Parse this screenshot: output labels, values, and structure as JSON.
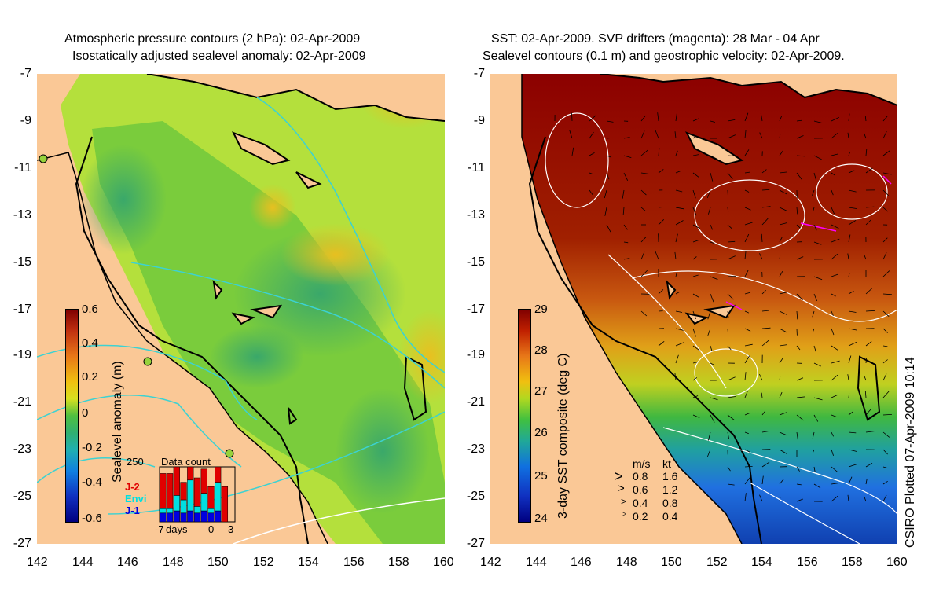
{
  "left_panel": {
    "title_line1": "Atmospheric pressure contours (2 hPa): 02-Apr-2009",
    "title_line2": "Isostatically adjusted sealevel anomaly: 02-Apr-2009",
    "colorbar_label": "Sealevel anomaly (m)",
    "colorbar_ticks": [
      "0.6",
      "0.4",
      "0.2",
      "0",
      "-0.2",
      "-0.4",
      "-0.6"
    ],
    "inset": {
      "title": "Data count",
      "ymax_label": "250",
      "legend": [
        {
          "name": "J-2",
          "color": "#e00000"
        },
        {
          "name": "Envi",
          "color": "#00e0e0"
        },
        {
          "name": "J-1",
          "color": "#0000e0"
        }
      ],
      "xlabel": "days",
      "x_ticks": [
        "-7",
        "0",
        "3"
      ]
    }
  },
  "right_panel": {
    "title_line1": "SST: 02-Apr-2009. SVP drifters (magenta): 28 Mar - 04 Apr",
    "title_line2": "Sealevel contours (0.1 m) and geostrophic velocity: 02-Apr-2009.",
    "colorbar_label": "3-day SST composite (deg C)",
    "colorbar_ticks": [
      "29",
      "28",
      "27",
      "26",
      "25",
      "24"
    ],
    "velocity_legend": {
      "header_ms": "m/s",
      "header_kt": "kt",
      "rows": [
        {
          "ms": "0.8",
          "kt": "1.6"
        },
        {
          "ms": "0.6",
          "kt": "1.2"
        },
        {
          "ms": "0.4",
          "kt": "0.8"
        },
        {
          "ms": "0.2",
          "kt": "0.4"
        }
      ]
    }
  },
  "y_ticks": [
    "-7",
    "-9",
    "-11",
    "-13",
    "-15",
    "-17",
    "-19",
    "-21",
    "-23",
    "-25",
    "-27"
  ],
  "x_ticks": [
    "142",
    "144",
    "146",
    "148",
    "150",
    "152",
    "154",
    "156",
    "158",
    "160"
  ],
  "credit": "CSIRO Plotted 07-Apr-2009 10:14",
  "chart_data": [
    {
      "type": "heatmap",
      "title": "Atmospheric pressure contours (2 hPa): 02-Apr-2009 / Isostatically adjusted sealevel anomaly: 02-Apr-2009",
      "x_range": [
        142,
        160
      ],
      "y_range": [
        -27,
        -7
      ],
      "colorbar_range": [
        -0.6,
        0.6
      ],
      "colorbar_label": "Sealevel anomaly (m)",
      "inset_bar": {
        "categories": [
          "-7",
          "-6",
          "-5",
          "-4",
          "-3",
          "-2",
          "-1",
          "0",
          "1",
          "2",
          "3"
        ],
        "series": [
          {
            "name": "J-1",
            "values": [
              40,
              40,
              50,
              40,
              50,
              40,
              50,
              40,
              50,
              0,
              0
            ]
          },
          {
            "name": "Envi",
            "values": [
              60,
              60,
              120,
              100,
              190,
              70,
              130,
              60,
              180,
              0,
              0
            ]
          },
          {
            "name": "J-2",
            "values": [
              220,
              220,
              280,
              180,
              290,
              200,
              240,
              160,
              280,
              160,
              0
            ]
          }
        ]
      }
    },
    {
      "type": "heatmap",
      "title": "SST: 02-Apr-2009. SVP drifters (magenta): 28 Mar - 04 Apr / Sealevel contours (0.1 m) and geostrophic velocity: 02-Apr-2009.",
      "x_range": [
        142,
        160
      ],
      "y_range": [
        -27,
        -7
      ],
      "colorbar_range": [
        24,
        29
      ],
      "colorbar_label": "3-day SST composite (deg C)"
    }
  ]
}
